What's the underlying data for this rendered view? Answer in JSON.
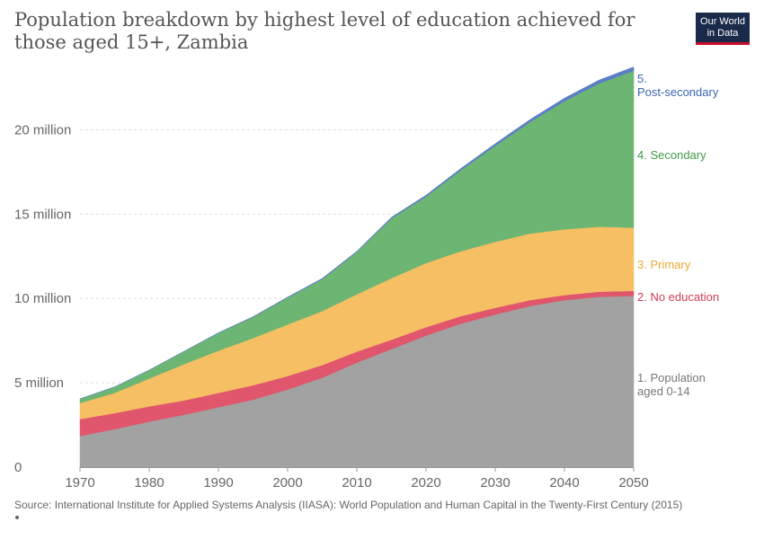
{
  "chart_data": {
    "type": "area",
    "stacked": true,
    "title": "Population breakdown by highest level of education achieved for those aged 15+, Zambia",
    "x": [
      1970,
      1975,
      1980,
      1985,
      1990,
      1995,
      2000,
      2005,
      2010,
      2015,
      2020,
      2025,
      2030,
      2035,
      2040,
      2045,
      2050
    ],
    "xticks": [
      "1970",
      "1980",
      "1990",
      "2000",
      "2010",
      "2020",
      "2030",
      "2040",
      "2050"
    ],
    "yticks": [
      "0",
      "5 million",
      "10 million",
      "15 million",
      "20 million"
    ],
    "ylim": [
      0,
      24500000
    ],
    "grid": true,
    "series": [
      {
        "name": "1. Population aged 0-14",
        "label_lines": [
          "1. Population",
          "aged 0-14"
        ],
        "color": "#a2a2a2",
        "values": [
          1850000,
          2250000,
          2700000,
          3100000,
          3550000,
          4000000,
          4600000,
          5300000,
          6200000,
          7000000,
          7800000,
          8500000,
          9050000,
          9550000,
          9900000,
          10100000,
          10150000
        ]
      },
      {
        "name": "2. No education",
        "label_lines": [
          "2. No education"
        ],
        "color": "#e0566c",
        "values": [
          1000000,
          950000,
          900000,
          850000,
          850000,
          850000,
          800000,
          750000,
          650000,
          550000,
          500000,
          450000,
          400000,
          350000,
          300000,
          300000,
          300000
        ]
      },
      {
        "name": "3. Primary",
        "label_lines": [
          "3. Primary"
        ],
        "color": "#f6bf63",
        "values": [
          950000,
          1200000,
          1650000,
          2150000,
          2500000,
          2800000,
          3050000,
          3200000,
          3400000,
          3650000,
          3800000,
          3850000,
          3900000,
          3950000,
          3900000,
          3850000,
          3750000
        ]
      },
      {
        "name": "4. Secondary",
        "label_lines": [
          "4. Secondary"
        ],
        "color": "#6db573",
        "values": [
          250000,
          350000,
          500000,
          750000,
          1050000,
          1250000,
          1600000,
          1900000,
          2500000,
          3550000,
          3950000,
          4800000,
          5700000,
          6600000,
          7600000,
          8500000,
          9300000
        ]
      },
      {
        "name": "5. Post-secondary",
        "label_lines": [
          "5.",
          "Post-secondary"
        ],
        "color": "#5a7fc4",
        "values": [
          5000,
          5000,
          10000,
          10000,
          20000,
          20000,
          30000,
          40000,
          50000,
          60000,
          80000,
          100000,
          130000,
          150000,
          180000,
          200000,
          230000
        ]
      }
    ],
    "label_colors": [
      "#777777",
      "#d33a52",
      "#e8a93a",
      "#3f9a46",
      "#3a66b3"
    ]
  },
  "logo": {
    "line1": "Our World",
    "line2": "in Data"
  },
  "source": "Source: International Institute for Applied Systems Analysis (IIASA): World Population and Human Capital in the Twenty-First Century (2015)"
}
